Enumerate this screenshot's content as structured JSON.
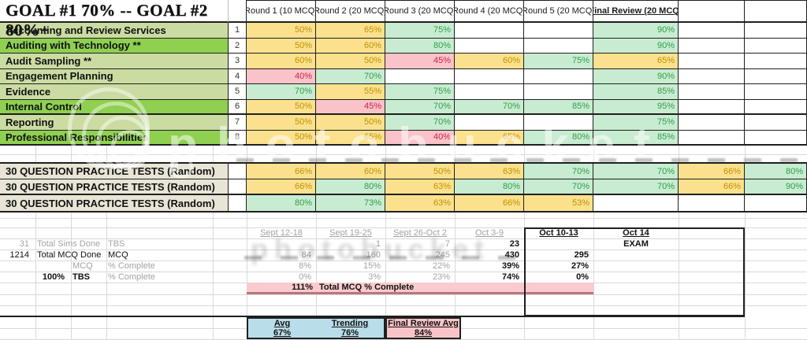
{
  "goal_header": "GOAL #1 70% -- GOAL #2 80%+",
  "colors": {
    "yellow_bg": "#fbe18d",
    "yellow_text": "#bf9000",
    "green_bg": "#c8ecd1",
    "green_text": "#2f9e49",
    "red_bg": "#f9c3c9",
    "red_text": "#ca2348",
    "label_light_green": "#cbdca2",
    "label_bright_green": "#8fd050",
    "practice_label_beige": "#e8e5d7",
    "total_bar_pink": "#f9cbce",
    "summary_blue": "#b9dee9",
    "summary_pink": "#f8c4c8",
    "grey_text": "#a3a3a3"
  },
  "main_table": {
    "col_headers": [
      {
        "t": "Round 1 (10 MCQ)",
        "bold": false
      },
      {
        "t": "Round 2 (20 MCQ)",
        "bold": false
      },
      {
        "t": "Round 3 (20 MCQ)",
        "bold": false
      },
      {
        "t": "Round 4 (20 MCQ)",
        "bold": false
      },
      {
        "t": "Round 5 (20 MCQ)",
        "bold": false
      },
      {
        "t": "Final Review (20 MCQ)",
        "bold": true
      },
      {
        "t": "",
        "bold": false
      },
      {
        "t": "",
        "bold": false
      }
    ],
    "rows": [
      {
        "label": "Accounting and Review Services",
        "num": "1",
        "shade": "light",
        "thick": false,
        "cells": [
          [
            "50%",
            "y"
          ],
          [
            "65%",
            "y"
          ],
          [
            "75%",
            "g"
          ],
          [
            "",
            "w"
          ],
          [
            "",
            "w"
          ],
          [
            "90%",
            "g"
          ],
          [
            "",
            "w"
          ],
          [
            "",
            "w"
          ]
        ]
      },
      {
        "label": "Auditing with Technology **",
        "num": "2",
        "shade": "bright",
        "thick": false,
        "cells": [
          [
            "50%",
            "y"
          ],
          [
            "60%",
            "y"
          ],
          [
            "80%",
            "g"
          ],
          [
            "",
            "w"
          ],
          [
            "",
            "w"
          ],
          [
            "90%",
            "g"
          ],
          [
            "",
            "w"
          ],
          [
            "",
            "w"
          ]
        ]
      },
      {
        "label": "Audit Sampling **",
        "num": "3",
        "shade": "light",
        "thick": false,
        "cells": [
          [
            "60%",
            "y"
          ],
          [
            "50%",
            "y"
          ],
          [
            "45%",
            "r"
          ],
          [
            "60%",
            "y"
          ],
          [
            "75%",
            "g"
          ],
          [
            "65%",
            "y"
          ],
          [
            "",
            "w"
          ],
          [
            "",
            "w"
          ]
        ]
      },
      {
        "label": "Engagement Planning",
        "num": "4",
        "shade": "light",
        "thick": false,
        "cells": [
          [
            "40%",
            "r"
          ],
          [
            "70%",
            "g"
          ],
          [
            "",
            "w"
          ],
          [
            "",
            "w"
          ],
          [
            "",
            "w"
          ],
          [
            "90%",
            "g"
          ],
          [
            "",
            "w"
          ],
          [
            "",
            "w"
          ]
        ]
      },
      {
        "label": "Evidence",
        "num": "5",
        "shade": "light",
        "thick": false,
        "cells": [
          [
            "70%",
            "g"
          ],
          [
            "55%",
            "y"
          ],
          [
            "75%",
            "g"
          ],
          [
            "",
            "w"
          ],
          [
            "",
            "w"
          ],
          [
            "85%",
            "g"
          ],
          [
            "",
            "w"
          ],
          [
            "",
            "w"
          ]
        ]
      },
      {
        "label": "Internal Control",
        "num": "6",
        "shade": "bright",
        "thick": true,
        "cells": [
          [
            "50%",
            "y"
          ],
          [
            "45%",
            "r"
          ],
          [
            "70%",
            "g"
          ],
          [
            "70%",
            "g"
          ],
          [
            "85%",
            "g"
          ],
          [
            "95%",
            "g"
          ],
          [
            "",
            "w"
          ],
          [
            "",
            "w"
          ]
        ]
      },
      {
        "label": "Reporting",
        "num": "7",
        "shade": "light",
        "thick": false,
        "cells": [
          [
            "50%",
            "y"
          ],
          [
            "50%",
            "y"
          ],
          [
            "70%",
            "g"
          ],
          [
            "",
            "w"
          ],
          [
            "",
            "w"
          ],
          [
            "75%",
            "g"
          ],
          [
            "",
            "w"
          ],
          [
            "",
            "w"
          ]
        ]
      },
      {
        "label": "Professional Responsibilities",
        "num": "8",
        "shade": "bright",
        "thick": true,
        "cells": [
          [
            "50%",
            "y"
          ],
          [
            "65%",
            "y"
          ],
          [
            "40%",
            "r"
          ],
          [
            "65%",
            "y"
          ],
          [
            "80%",
            "g"
          ],
          [
            "85%",
            "g"
          ],
          [
            "",
            "w"
          ],
          [
            "",
            "w"
          ]
        ]
      }
    ]
  },
  "practice_tests": {
    "label": "30 QUESTION PRACTICE TESTS (Random)",
    "rows": [
      {
        "cells": [
          [
            "66%",
            "y"
          ],
          [
            "60%",
            "y"
          ],
          [
            "50%",
            "y"
          ],
          [
            "63%",
            "y"
          ],
          [
            "70%",
            "g"
          ],
          [
            "70%",
            "g"
          ],
          [
            "66%",
            "y"
          ],
          [
            "80%",
            "g"
          ]
        ]
      },
      {
        "cells": [
          [
            "66%",
            "y"
          ],
          [
            "80%",
            "g"
          ],
          [
            "63%",
            "y"
          ],
          [
            "80%",
            "g"
          ],
          [
            "70%",
            "g"
          ],
          [
            "70%",
            "g"
          ],
          [
            "66%",
            "y"
          ],
          [
            "90%",
            "g"
          ]
        ]
      },
      {
        "cells": [
          [
            "80%",
            "g"
          ],
          [
            "73%",
            "g"
          ],
          [
            "63%",
            "y"
          ],
          [
            "66%",
            "y"
          ],
          [
            "53%",
            "y"
          ],
          [
            "",
            "w"
          ],
          [
            "",
            "w"
          ],
          [
            "",
            "w"
          ]
        ]
      }
    ]
  },
  "progress": {
    "week_headers": [
      {
        "t": "Sept 12-18",
        "s": "past"
      },
      {
        "t": "Sept 19-25",
        "s": "past"
      },
      {
        "t": "Sept 26-Oct 2",
        "s": "past"
      },
      {
        "t": "Oct 3-9",
        "s": "past"
      },
      {
        "t": "Oct 10-13",
        "s": "bold"
      },
      {
        "t": "Oct 14",
        "s": "bold"
      }
    ],
    "rows": [
      {
        "a": "31",
        "b": "Total Sims Done",
        "ab": "",
        "c": "",
        "d": "TBS",
        "left_style": "past",
        "values": [
          [
            "",
            ""
          ],
          [
            "1",
            "past"
          ],
          [
            "7",
            "past"
          ],
          [
            "23",
            "bold"
          ],
          [
            "",
            ""
          ]
        ],
        "exam": ""
      },
      {
        "a": "1214",
        "b": "Total MCQ Done",
        "ab": "",
        "c": "",
        "d": "MCQ",
        "left_style": "dark",
        "values": [
          [
            "84",
            "past"
          ],
          [
            "160",
            "past"
          ],
          [
            "245",
            "past"
          ],
          [
            "430",
            "bold"
          ],
          [
            "295",
            "bold"
          ]
        ],
        "exam": ""
      },
      {
        "a": "",
        "b": "",
        "ab": "",
        "c": "MCQ",
        "d": "% Complete",
        "left_style": "past",
        "values": [
          [
            "8%",
            "past"
          ],
          [
            "15%",
            "past"
          ],
          [
            "22%",
            "past"
          ],
          [
            "39%",
            "bold"
          ],
          [
            "27%",
            "bold"
          ]
        ],
        "exam": ""
      },
      {
        "a": "",
        "b": "",
        "ab": "100%",
        "c": "TBS",
        "d": "% Complete",
        "left_style": "boldgrey",
        "values": [
          [
            "0%",
            "past"
          ],
          [
            "3%",
            "past"
          ],
          [
            "23%",
            "past"
          ],
          [
            "74%",
            "bold"
          ],
          [
            "0%",
            "bold"
          ]
        ],
        "exam": ""
      }
    ],
    "exam_label": "EXAM",
    "total_bar": {
      "pct": "111%",
      "label": "Total MCQ % Complete"
    }
  },
  "summary": {
    "avg_label": "Avg",
    "avg_value": "67%",
    "trending_label": "Trending",
    "trending_value": "76%",
    "final_label": "Final Review Avg",
    "final_value": "84%"
  },
  "watermark": {
    "big_text": "photobucket",
    "dark_text": "photobucket"
  }
}
